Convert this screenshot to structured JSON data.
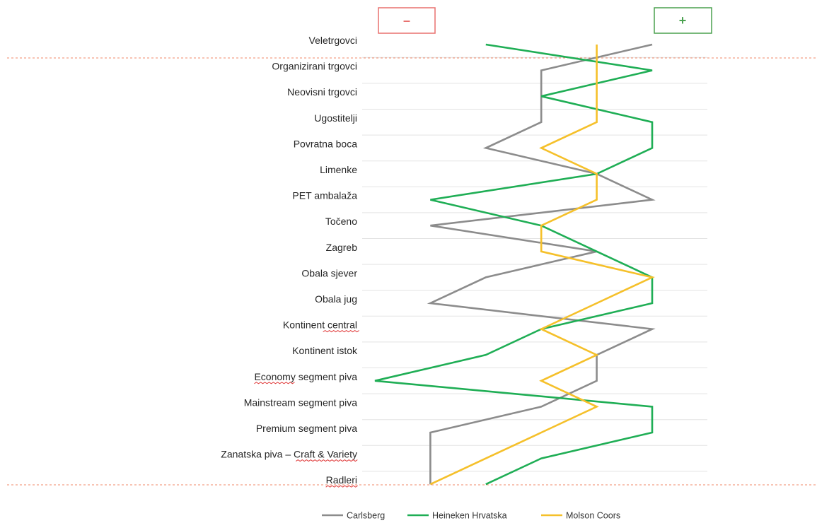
{
  "chart_data": {
    "type": "line",
    "orientation": "vertical-categories",
    "categories": [
      "Veletrgovci",
      "Organizirani trgovci",
      "Neovisni trgovci",
      "Ugostitelji",
      "Povratna boca",
      "Limenke",
      "PET ambalaža",
      "Točeno",
      "Zagreb",
      "Obala sjever",
      "Obala jug",
      "Kontinent central",
      "Kontinent istok",
      "Economy segment piva",
      "Mainstream segment piva",
      "Premium segment piva",
      "Zanatska piva – Craft & Variety",
      "Radleri"
    ],
    "scale": {
      "min": 0,
      "max": 5,
      "min_label": "–",
      "max_label": "+"
    },
    "series": [
      {
        "name": "Carlsberg",
        "color": "#8c8c8c",
        "values": [
          5,
          3,
          3,
          3,
          2,
          4,
          5,
          1,
          4,
          2,
          1,
          5,
          4,
          4,
          3,
          1,
          1,
          1
        ]
      },
      {
        "name": "Heineken Hrvatska",
        "color": "#1fae55",
        "values": [
          2,
          5,
          3,
          5,
          5,
          4,
          1,
          3,
          4,
          5,
          5,
          3,
          2,
          0,
          5,
          5,
          3,
          2
        ]
      },
      {
        "name": "Molson Coors",
        "color": "#f5c02a",
        "values": [
          4,
          4,
          4,
          4,
          3,
          4,
          4,
          3,
          3,
          5,
          4,
          3,
          4,
          3,
          4,
          3,
          2,
          1
        ]
      }
    ],
    "legend_position": "bottom",
    "grid": true
  },
  "colors": {
    "minus": "#e8706e",
    "plus": "#4aa14f",
    "divider": "#f08a6a",
    "grid": "#e3e3e3",
    "squiggle": "#e03c3c"
  },
  "spellcheck_marked": [
    "Kontinent central",
    "Economy segment piva",
    "Zanatska piva – Craft & Variety",
    "Radleri"
  ]
}
